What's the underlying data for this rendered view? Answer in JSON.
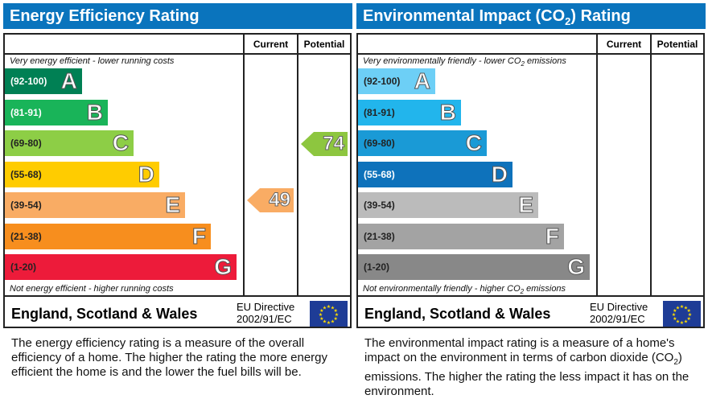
{
  "energy": {
    "title": "Energy Efficiency Rating",
    "col_current": "Current",
    "col_potential": "Potential",
    "top_note": "Very energy efficient - lower running costs",
    "bottom_note": "Not energy efficient - higher running costs",
    "footer": "England, Scotland & Wales",
    "eu1": "EU Directive",
    "eu2": "2002/91/EC",
    "description": "The energy efficiency rating is a measure of the overall efficiency of a home. The higher the rating the more energy efficient the home is and the lower the fuel bills will be.",
    "current": "49",
    "potential": "74",
    "current_color": "#f9ac64",
    "potential_color": "#8dc63f"
  },
  "environment": {
    "title_pre": "Environmental Impact (CO",
    "title_sub": "2",
    "title_post": ") Rating",
    "col_current": "Current",
    "col_potential": "Potential",
    "top_note_pre": "Very environmentally friendly - lower CO",
    "top_note_post": " emissions",
    "bottom_note_pre": "Not environmentally friendly - higher CO",
    "bottom_note_post": " emissions",
    "sub": "2",
    "footer": "England, Scotland & Wales",
    "eu1": "EU Directive",
    "eu2": "2002/91/EC",
    "description_pre": "The environmental impact rating is a measure of a home's impact on the environment in terms of carbon dioxide (CO",
    "description_post": ") emissions. The higher the rating the less impact it has on the environment."
  },
  "chart_data": [
    {
      "type": "bar",
      "title": "Energy Efficiency Rating",
      "categories": [
        "A",
        "B",
        "C",
        "D",
        "E",
        "F",
        "G"
      ],
      "ranges": [
        "(92-100)",
        "(81-91)",
        "(69-80)",
        "(55-68)",
        "(39-54)",
        "(21-38)",
        "(1-20)"
      ],
      "colors": [
        "#008054",
        "#19b459",
        "#8dce46",
        "#ffcc00",
        "#f9ac64",
        "#f78e1e",
        "#ed1b3a"
      ],
      "current": 49,
      "potential": 74
    },
    {
      "type": "bar",
      "title": "Environmental Impact (CO2) Rating",
      "categories": [
        "A",
        "B",
        "C",
        "D",
        "E",
        "F",
        "G"
      ],
      "ranges": [
        "(92-100)",
        "(81-91)",
        "(69-80)",
        "(55-68)",
        "(39-54)",
        "(21-38)",
        "(1-20)"
      ],
      "colors": [
        "#6dcff6",
        "#22b5ec",
        "#1a9ad6",
        "#0e72bb",
        "#bbbbbb",
        "#a3a3a3",
        "#888888"
      ]
    }
  ]
}
